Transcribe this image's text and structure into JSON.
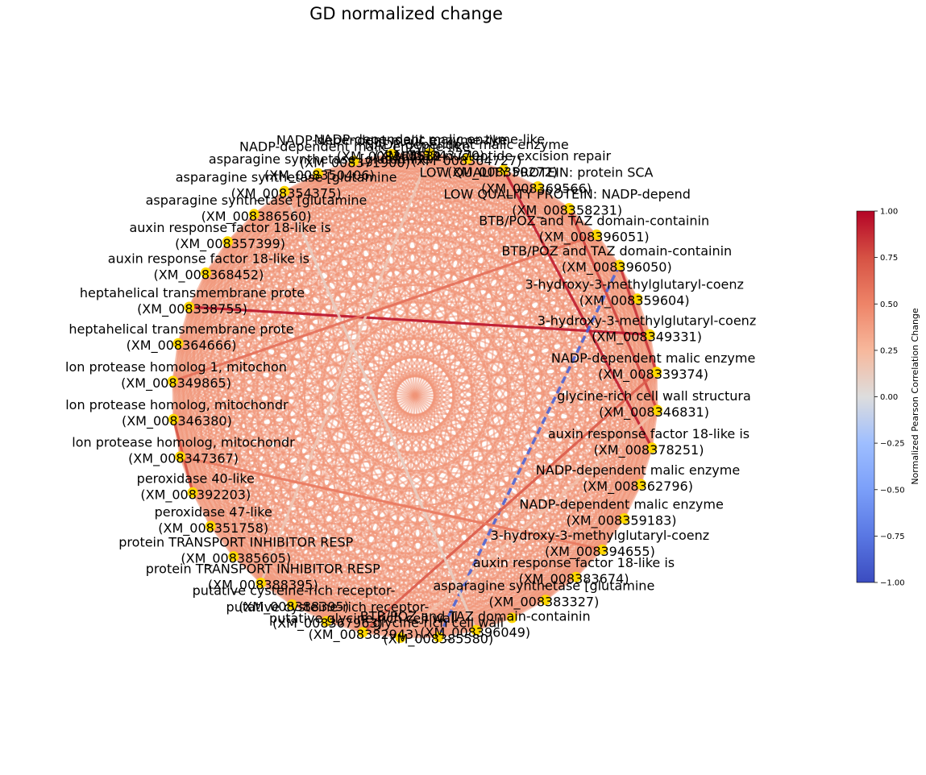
{
  "chart_data": {
    "type": "network",
    "title": "GD normalized change",
    "colorbar": {
      "label": "Normalized Pearson Correlation Change",
      "min": -1.0,
      "max": 1.0,
      "ticks": [
        "1.00",
        "0.75",
        "0.50",
        "0.25",
        "0.00",
        "−0.25",
        "−0.50",
        "−0.75",
        "−1.00"
      ],
      "colormap": "coolwarm"
    },
    "node_color": "#ffd700",
    "default_edge_value": 0.42,
    "nodes": [
      {
        "name": "NADP-dependent malic enzyme-like",
        "id": "(XM_008343770)",
        "labeled": true
      },
      {
        "name": "NADP-dependent malic enzyme",
        "id": "(XM_008364727)",
        "labeled": true
      },
      {
        "name": "MMS19 nucleotide excision repair",
        "id": "(XM_008350272)",
        "labeled": true
      },
      {
        "name": "LOW QUALITY PROTEIN: protein SCA",
        "id": "(XM_008369566)",
        "labeled": true
      },
      {
        "name": "LOW QUALITY PROTEIN: NADP-depend",
        "id": "(XM_008358231)",
        "labeled": true
      },
      {
        "name": "BTB/POZ and TAZ domain-containin",
        "id": "(XM_008396051)",
        "labeled": true
      },
      {
        "name": "BTB/POZ and TAZ domain-containin",
        "id": "(XM_008396050)",
        "labeled": true
      },
      {
        "name": "3-hydroxy-3-methylglutaryl-coenz",
        "id": "(XM_008359604)",
        "labeled": true
      },
      {
        "name": "3-hydroxy-3-methylglutaryl-coenz",
        "id": "(XM_008349331)",
        "labeled": true
      },
      {
        "name": "NADP-dependent malic enzyme",
        "id": "(XM_008339374)",
        "labeled": true
      },
      {
        "name": "glycine-rich cell wall structura",
        "id": "(XM_008346831)",
        "labeled": true
      },
      {
        "name": "auxin response factor 18-like is",
        "id": "(XM_008378251)",
        "labeled": true
      },
      {
        "name": "NADP-dependent malic enzyme",
        "id": "(XM_008362796)",
        "labeled": true
      },
      {
        "name": "NADP-dependent malic enzyme",
        "id": "(XM_008359183)",
        "labeled": true
      },
      {
        "name": "3-hydroxy-3-methylglutaryl-coenz",
        "id": "(XM_008394655)",
        "labeled": true
      },
      {
        "name": "auxin response factor 18-like is",
        "id": "(XM_008383674)",
        "labeled": true
      },
      {
        "name": "asparagine synthetase [glutamine",
        "id": "(XM_008383327)",
        "labeled": true
      },
      {
        "name": "",
        "id": "",
        "labeled": false
      },
      {
        "name": "BTB/POZ and TAZ domain-containin",
        "id": "(XM_008396049)",
        "labeled": true
      },
      {
        "name": "glycine-rich cell wall",
        "id": "(XM_008385580)",
        "labeled": true
      },
      {
        "name": "",
        "id": "",
        "labeled": false
      },
      {
        "name": "putative glycine-rich cell wall",
        "id": "(XM_008382943)",
        "labeled": true
      },
      {
        "name": "putative cysteine-rich receptor-",
        "id": "(XM_008367963)",
        "labeled": true
      },
      {
        "name": "putative cysteine-rich receptor-",
        "id": "(XM_008388395)",
        "labeled": true
      },
      {
        "name": "protein TRANSPORT INHIBITOR RESP",
        "id": "(XM_008388395)",
        "labeled": true
      },
      {
        "name": "protein TRANSPORT INHIBITOR RESP",
        "id": "(XM_008385605)",
        "labeled": true
      },
      {
        "name": "peroxidase 47-like",
        "id": "(XM_008351758)",
        "labeled": true
      },
      {
        "name": "peroxidase 40-like",
        "id": "(XM_008392203)",
        "labeled": true
      },
      {
        "name": "lon protease homolog, mitochondr",
        "id": "(XM_008347367)",
        "labeled": true
      },
      {
        "name": "lon protease homolog, mitochondr",
        "id": "(XM_008346380)",
        "labeled": true
      },
      {
        "name": "lon protease homolog 1, mitochon",
        "id": "(XM_008349865)",
        "labeled": true
      },
      {
        "name": "heptahelical transmembrane prote",
        "id": "(XM_008364666)",
        "labeled": true
      },
      {
        "name": "heptahelical transmembrane prote",
        "id": "(XM_008338755)",
        "labeled": true
      },
      {
        "name": "auxin response factor 18-like is",
        "id": "(XM_008368452)",
        "labeled": true
      },
      {
        "name": "auxin response factor 18-like is",
        "id": "(XM_008357399)",
        "labeled": true
      },
      {
        "name": "asparagine synthetase [glutamine",
        "id": "(XM_008386560)",
        "labeled": true
      },
      {
        "name": "asparagine synthetase [glutamine",
        "id": "(XM_008354375)",
        "labeled": true
      },
      {
        "name": "asparagine synthetase [glutamine",
        "id": "(XM_008350406)",
        "labeled": true
      },
      {
        "name": "NADP-dependent malic enzyme-like",
        "id": "(XM_008371900)",
        "labeled": true
      },
      {
        "name": "NADP-dependent malic enzyme-like",
        "id": "(XM_008365531)",
        "labeled": true
      }
    ],
    "highlight_edges": [
      {
        "source": 2,
        "target": 11,
        "value": 0.92
      },
      {
        "source": 9,
        "target": 6,
        "value": 0.85
      },
      {
        "source": 10,
        "target": 4,
        "value": 0.8
      },
      {
        "source": 32,
        "target": 8,
        "value": 0.95
      },
      {
        "source": 6,
        "target": 19,
        "value": -0.85
      },
      {
        "source": 21,
        "target": 9,
        "value": 0.7
      },
      {
        "source": 27,
        "target": 29,
        "value": 0.75
      },
      {
        "source": 0,
        "target": 24,
        "value": 0.15
      },
      {
        "source": 18,
        "target": 36,
        "value": 0.1
      },
      {
        "source": 5,
        "target": 30,
        "value": 0.6
      },
      {
        "source": 14,
        "target": 28,
        "value": 0.55
      },
      {
        "source": 20,
        "target": 10,
        "value": 0.2
      }
    ]
  }
}
